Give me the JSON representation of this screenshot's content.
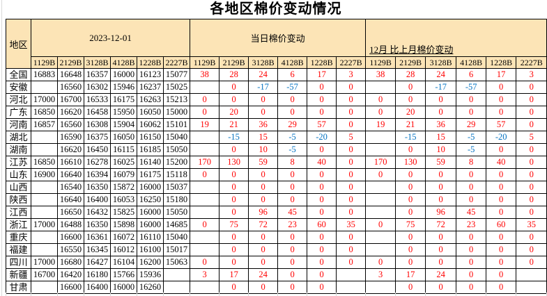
{
  "title": "各地区棉价变动情况",
  "colors": {
    "header_bg": "#FCE4B6",
    "positive": "#FF0000",
    "negative": "#0070C0",
    "gridline": "#D9D9D9"
  },
  "table": {
    "region_header": "地区",
    "groups": [
      {
        "label": "2023-12-01"
      },
      {
        "label": "当日棉价变动"
      },
      {
        "label": "12月 比上月棉价变动"
      }
    ],
    "grade_columns": [
      "1129B",
      "2129B",
      "3128B",
      "4128B",
      "1228B",
      "2227B"
    ],
    "rows": [
      {
        "region": "全国",
        "prices": [
          "16883",
          "16648",
          "16357",
          "16000",
          "16123",
          "15077"
        ],
        "day_change": [
          "38",
          "28",
          "24",
          "6",
          "17",
          "3"
        ],
        "month_change": [
          "38",
          "28",
          "24",
          "6",
          "17",
          "3"
        ]
      },
      {
        "region": "安徽",
        "prices": [
          "",
          "16560",
          "16302",
          "15946",
          "16237",
          "15025"
        ],
        "day_change": [
          "",
          "0",
          "-17",
          "-57",
          "0",
          "0"
        ],
        "month_change": [
          "",
          "0",
          "-17",
          "-57",
          "0",
          "0"
        ]
      },
      {
        "region": "河北",
        "prices": [
          "17000",
          "16700",
          "16533",
          "16175",
          "16263",
          "15213"
        ],
        "day_change": [
          "0",
          "0",
          "0",
          "0",
          "0",
          "0"
        ],
        "month_change": [
          "0",
          "0",
          "0",
          "0",
          "0",
          "0"
        ]
      },
      {
        "region": "广东",
        "prices": [
          "16850",
          "16620",
          "16458",
          "15950",
          "16050",
          "15000"
        ],
        "day_change": [
          "0",
          "20",
          "0",
          "0",
          "0",
          "0"
        ],
        "month_change": [
          "0",
          "20",
          "0",
          "0",
          "0",
          "0"
        ]
      },
      {
        "region": "河南",
        "prices": [
          "16857",
          "16560",
          "16308",
          "15904",
          "16062",
          "15101"
        ],
        "day_change": [
          "19",
          "21",
          "36",
          "29",
          "57",
          "0"
        ],
        "month_change": [
          "19",
          "21",
          "36",
          "29",
          "57",
          "0"
        ]
      },
      {
        "region": "湖北",
        "prices": [
          "",
          "16590",
          "16375",
          "16050",
          "16150",
          "15040"
        ],
        "day_change": [
          "",
          "-15",
          "15",
          "-5",
          "-20",
          "5"
        ],
        "month_change": [
          "",
          "-15",
          "15",
          "-5",
          "-20",
          "5"
        ]
      },
      {
        "region": "湖南",
        "prices": [
          "",
          "16620",
          "16450",
          "16115",
          "16185",
          "15050"
        ],
        "day_change": [
          "",
          "0",
          "10",
          "-5",
          "0",
          "0"
        ],
        "month_change": [
          "",
          "0",
          "10",
          "-5",
          "0",
          "0"
        ]
      },
      {
        "region": "江苏",
        "prices": [
          "16850",
          "16610",
          "16278",
          "16025",
          "16140",
          "15200"
        ],
        "day_change": [
          "170",
          "130",
          "59",
          "8",
          "40",
          "0"
        ],
        "month_change": [
          "170",
          "130",
          "59",
          "8",
          "40",
          "0"
        ]
      },
      {
        "region": "山东",
        "prices": [
          "16900",
          "16640",
          "16394",
          "16079",
          "16175",
          "15118"
        ],
        "day_change": [
          "0",
          "0",
          "0",
          "0",
          "0",
          "0"
        ],
        "month_change": [
          "0",
          "0",
          "0",
          "0",
          "0",
          "0"
        ]
      },
      {
        "region": "山西",
        "prices": [
          "",
          "16540",
          "16350",
          "15872",
          "16000",
          "15037"
        ],
        "day_change": [
          "",
          "0",
          "0",
          "0",
          "0",
          "0"
        ],
        "month_change": [
          "",
          "0",
          "0",
          "0",
          "0",
          "0"
        ]
      },
      {
        "region": "陕西",
        "prices": [
          "",
          "16640",
          "16400",
          "16053",
          "16250",
          "15180"
        ],
        "day_change": [
          "",
          "0",
          "0",
          "0",
          "0",
          "0"
        ],
        "month_change": [
          "",
          "0",
          "0",
          "0",
          "0",
          "0"
        ]
      },
      {
        "region": "江西",
        "prices": [
          "",
          "16650",
          "16432",
          "15825",
          "16000",
          "15050"
        ],
        "day_change": [
          "",
          "0",
          "96",
          "45",
          "0",
          "0"
        ],
        "month_change": [
          "",
          "0",
          "96",
          "45",
          "0",
          "0"
        ]
      },
      {
        "region": "浙江",
        "prices": [
          "17000",
          "16488",
          "16350",
          "15898",
          "16000",
          "14685"
        ],
        "day_change": [
          "0",
          "75",
          "72",
          "23",
          "60",
          "35"
        ],
        "month_change": [
          "0",
          "75",
          "72",
          "23",
          "60",
          "35"
        ]
      },
      {
        "region": "重庆",
        "prices": [
          "",
          "16600",
          "16361",
          "16072",
          "16110",
          "15040"
        ],
        "day_change": [
          "",
          "0",
          "0",
          "0",
          "0",
          "0"
        ],
        "month_change": [
          "",
          "0",
          "0",
          "0",
          "0",
          "0"
        ]
      },
      {
        "region": "福建",
        "prices": [
          "",
          "16550",
          "16345",
          "16012",
          "16100",
          "15017"
        ],
        "day_change": [
          "",
          "0",
          "0",
          "0",
          "0",
          "0"
        ],
        "month_change": [
          "",
          "0",
          "0",
          "0",
          "0",
          "0"
        ]
      },
      {
        "region": "四川",
        "prices": [
          "17000",
          "16680",
          "16427",
          "16104",
          "16200",
          "15063"
        ],
        "day_change": [
          "0",
          "0",
          "0",
          "0",
          "0",
          "0"
        ],
        "month_change": [
          "0",
          "0",
          "0",
          "0",
          "0",
          "0"
        ]
      },
      {
        "region": "新疆",
        "prices": [
          "16700",
          "16420",
          "16180",
          "15766",
          "15936",
          ""
        ],
        "day_change": [
          "3",
          "17",
          "24",
          "0",
          "0",
          ""
        ],
        "month_change": [
          "3",
          "17",
          "24",
          "0",
          "0",
          ""
        ]
      },
      {
        "region": "甘肃",
        "prices": [
          "",
          "16600",
          "16400",
          "16000",
          "16260",
          ""
        ],
        "day_change": [
          "",
          "0",
          "0",
          "0",
          "0",
          ""
        ],
        "month_change": [
          "",
          "0",
          "0",
          "0",
          "0",
          ""
        ]
      }
    ]
  }
}
